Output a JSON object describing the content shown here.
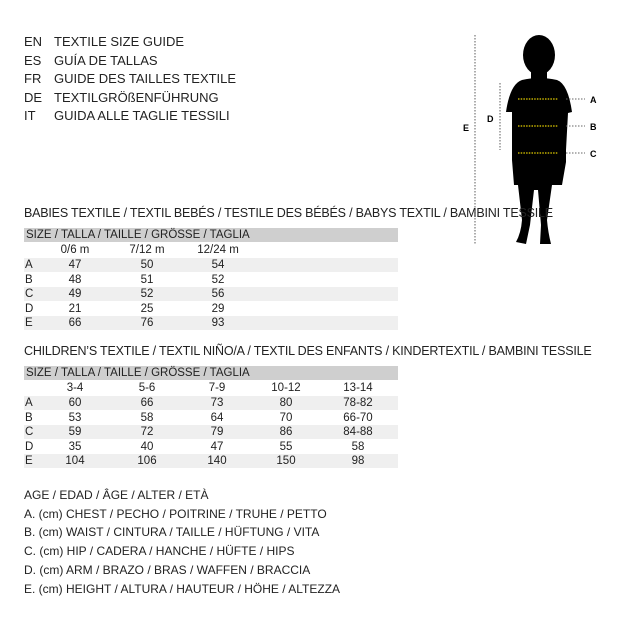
{
  "languages": [
    {
      "code": "EN",
      "name": "TEXTILE SIZE GUIDE"
    },
    {
      "code": "ES",
      "name": "GUÍA DE TALLAS"
    },
    {
      "code": "FR",
      "name": "GUIDE DES TAILLES TEXTILE"
    },
    {
      "code": "DE",
      "name": "TEXTILGRÖßENFÜHRUNG"
    },
    {
      "code": "IT",
      "name": "GUIDA ALLE TAGLIE TESSILI"
    }
  ],
  "figure": {
    "labels": {
      "a": "A",
      "b": "B",
      "c": "C",
      "d": "D",
      "e": "E"
    },
    "accent": "#e5d000"
  },
  "babies": {
    "title": "BABIES TEXTILE / TEXTIL BEBÉS / TESTILE DES BÉBÉS / BABYS TEXTIL / BAMBINI TESSILE",
    "size_header": "SIZE / TALLA / TAILLE / GRÖSSE / TAGLIA",
    "columns": [
      "0/6 m",
      "7/12 m",
      "12/24 m"
    ],
    "rows": [
      {
        "label": "A",
        "values": [
          "47",
          "50",
          "54"
        ]
      },
      {
        "label": "B",
        "values": [
          "48",
          "51",
          "52"
        ]
      },
      {
        "label": "C",
        "values": [
          "49",
          "52",
          "56"
        ]
      },
      {
        "label": "D",
        "values": [
          "21",
          "25",
          "29"
        ]
      },
      {
        "label": "E",
        "values": [
          "66",
          "76",
          "93"
        ]
      }
    ]
  },
  "children": {
    "title": "CHILDREN’S TEXTILE / TEXTIL NIÑO/A / TEXTIL DES ENFANTS / KINDERTEXTIL / BAMBINI TESSILE",
    "size_header": "SIZE / TALLA / TAILLE / GRÖSSE / TAGLIA",
    "columns": [
      "3-4",
      "5-6",
      "7-9",
      "10-12",
      "13-14"
    ],
    "rows": [
      {
        "label": "A",
        "values": [
          "60",
          "66",
          "73",
          "80",
          "78-82"
        ]
      },
      {
        "label": "B",
        "values": [
          "53",
          "58",
          "64",
          "70",
          "66-70"
        ]
      },
      {
        "label": "C",
        "values": [
          "59",
          "72",
          "79",
          "86",
          "84-88"
        ]
      },
      {
        "label": "D",
        "values": [
          "35",
          "40",
          "47",
          "55",
          "58"
        ]
      },
      {
        "label": "E",
        "values": [
          "104",
          "106",
          "140",
          "150",
          "98"
        ]
      }
    ]
  },
  "legend": [
    "AGE / EDAD / ÂGE / ALTER / ETÀ",
    "A. (cm) CHEST / PECHO / POITRINE / TRUHE / PETTO",
    "B. (cm) WAIST / CINTURA / TAILLE / HÜFTUNG / VITA",
    "C. (cm) HIP / CADERA / HANCHE / HÜFTE / HIPS",
    "D. (cm) ARM / BRAZO / BRAS / WAFFEN / BRACCIA",
    "E. (cm) HEIGHT / ALTURA / HAUTEUR / HÖHE / ALTEZZA"
  ]
}
